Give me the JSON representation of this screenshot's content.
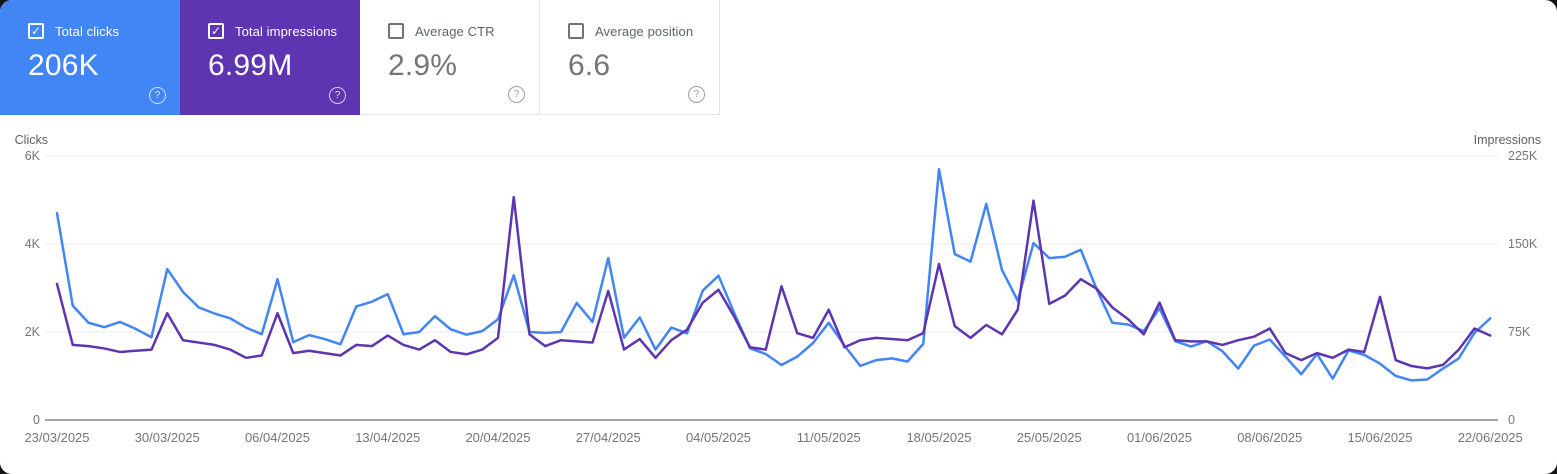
{
  "ui": {
    "help_glyph": "?",
    "check_glyph": "✓"
  },
  "cards": [
    {
      "id": "total-clicks",
      "label": "Total clicks",
      "value": "206K",
      "checked": true,
      "bg": "#4285f4"
    },
    {
      "id": "total-impressions",
      "label": "Total impressions",
      "value": "6.99M",
      "checked": true,
      "bg": "#5e35b1"
    },
    {
      "id": "average-ctr",
      "label": "Average CTR",
      "value": "2.9%",
      "checked": false,
      "bg": null
    },
    {
      "id": "average-position",
      "label": "Average position",
      "value": "6.6",
      "checked": false,
      "bg": null
    }
  ],
  "chart_data": {
    "type": "line",
    "interval": "daily",
    "start_date": "23/03/2025",
    "end_date": "22/06/2025",
    "grid": true,
    "x_labels": [
      "23/03/2025",
      "30/03/2025",
      "06/04/2025",
      "13/04/2025",
      "20/04/2025",
      "27/04/2025",
      "04/05/2025",
      "11/05/2025",
      "18/05/2025",
      "25/05/2025",
      "01/06/2025",
      "08/06/2025",
      "15/06/2025",
      "22/06/2025"
    ],
    "left_axis": {
      "title": "Clicks",
      "ticks": [
        "0",
        "2K",
        "4K",
        "6K"
      ],
      "max": 6000
    },
    "right_axis": {
      "title": "Impressions",
      "ticks": [
        "0",
        "75K",
        "150K",
        "225K"
      ],
      "max": 225000
    },
    "series": [
      {
        "id": "clicks",
        "name": "Total clicks",
        "axis": "left",
        "color": "#4285f4",
        "values": [
          4700,
          2600,
          2210,
          2110,
          2230,
          2070,
          1880,
          3430,
          2910,
          2560,
          2420,
          2310,
          2100,
          1950,
          3200,
          1770,
          1930,
          1840,
          1720,
          2580,
          2690,
          2860,
          1950,
          2000,
          2360,
          2060,
          1940,
          2020,
          2290,
          3290,
          2000,
          1980,
          2000,
          2660,
          2230,
          3680,
          1870,
          2330,
          1600,
          2100,
          1970,
          2940,
          3280,
          2430,
          1630,
          1500,
          1250,
          1440,
          1750,
          2210,
          1690,
          1230,
          1360,
          1400,
          1330,
          1730,
          5700,
          3770,
          3600,
          4910,
          3410,
          2710,
          4020,
          3680,
          3710,
          3870,
          2980,
          2210,
          2170,
          2020,
          2540,
          1790,
          1670,
          1790,
          1560,
          1170,
          1690,
          1830,
          1440,
          1040,
          1500,
          940,
          1580,
          1480,
          1280,
          1000,
          900,
          920,
          1170,
          1400,
          1980,
          2310
        ]
      },
      {
        "id": "impressions",
        "name": "Total impressions",
        "axis": "right",
        "color": "#5e35b1",
        "values": [
          116000,
          64000,
          63000,
          61000,
          58000,
          59000,
          60000,
          91000,
          68000,
          66000,
          64000,
          60000,
          53000,
          55000,
          91000,
          57000,
          59000,
          57000,
          55000,
          64000,
          63000,
          72000,
          64000,
          60000,
          68000,
          58000,
          56000,
          60000,
          70000,
          190000,
          73000,
          63000,
          68000,
          67000,
          66000,
          110000,
          60000,
          69000,
          53000,
          68000,
          77000,
          100000,
          111000,
          88000,
          62000,
          60000,
          114000,
          74000,
          70000,
          94000,
          62000,
          68000,
          70000,
          69000,
          68000,
          74000,
          133000,
          80000,
          70000,
          81000,
          73000,
          94000,
          187000,
          99000,
          106000,
          120000,
          112000,
          96000,
          86000,
          73000,
          100000,
          68000,
          67000,
          67000,
          64000,
          68000,
          71000,
          78000,
          57000,
          51000,
          57000,
          53000,
          60000,
          58000,
          105000,
          51000,
          46000,
          44000,
          47000,
          60000,
          78000,
          72000
        ]
      }
    ]
  }
}
